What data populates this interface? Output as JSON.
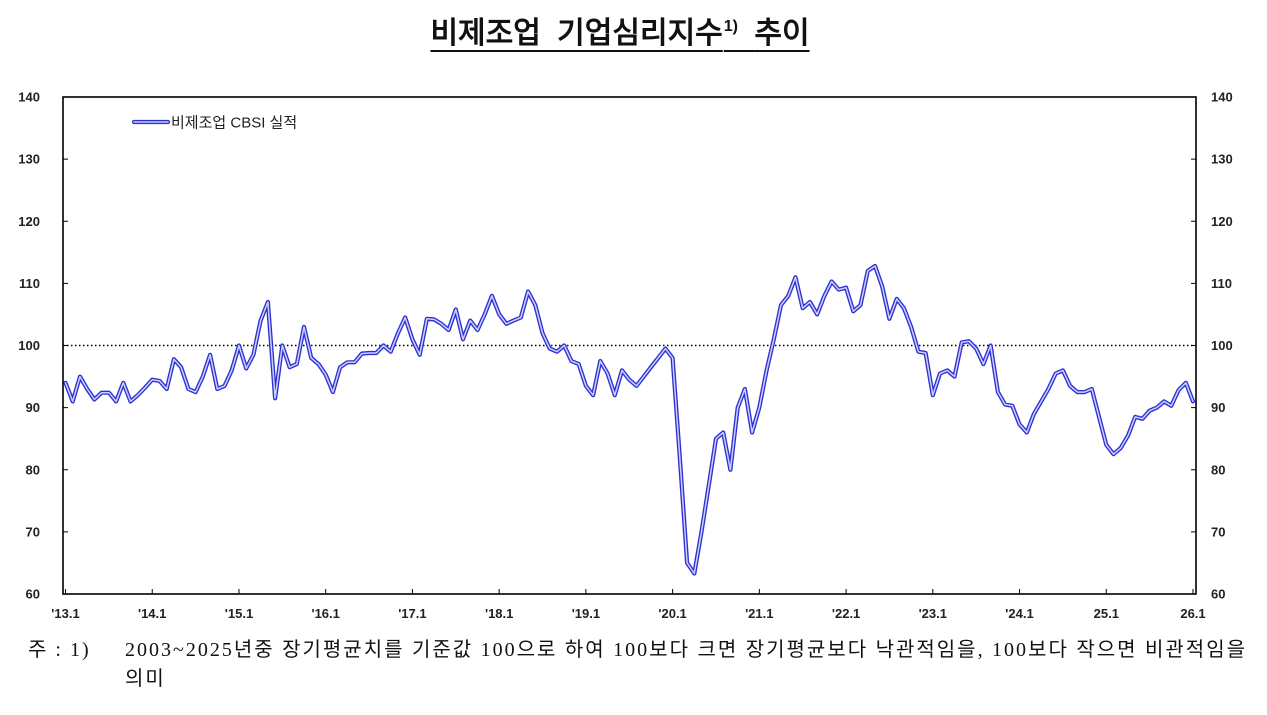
{
  "chart_data": {
    "type": "line",
    "title": "비제조업 기업심리지수",
    "title_note_mark": "1)",
    "title_suffix": "추이",
    "ylim": [
      60,
      140
    ],
    "y_ticks": [
      140,
      130,
      120,
      110,
      100,
      90,
      80,
      70,
      60
    ],
    "right_axis_mirrors_left": true,
    "x_ticks": [
      "'13.1",
      "'14.1",
      "'15.1",
      "'16.1",
      "'17.1",
      "'18.1",
      "'19.1",
      "'20.1",
      "'21.1",
      "'22.1",
      "'23.1",
      "'24.1",
      "25.1",
      "26.1"
    ],
    "x": [
      "2013-01",
      "2013-02",
      "2013-03",
      "2013-04",
      "2013-05",
      "2013-06",
      "2013-07",
      "2013-08",
      "2013-09",
      "2013-10",
      "2013-11",
      "2013-12",
      "2014-01",
      "2014-02",
      "2014-03",
      "2014-04",
      "2014-05",
      "2014-06",
      "2014-07",
      "2014-08",
      "2014-09",
      "2014-10",
      "2014-11",
      "2014-12",
      "2015-01",
      "2015-02",
      "2015-03",
      "2015-04",
      "2015-05",
      "2015-06",
      "2015-07",
      "2015-08",
      "2015-09",
      "2015-10",
      "2015-11",
      "2015-12",
      "2016-01",
      "2016-02",
      "2016-03",
      "2016-04",
      "2016-05",
      "2016-06",
      "2016-07",
      "2016-08",
      "2016-09",
      "2016-10",
      "2016-11",
      "2016-12",
      "2017-01",
      "2017-02",
      "2017-03",
      "2017-04",
      "2017-05",
      "2017-06",
      "2017-07",
      "2017-08",
      "2017-09",
      "2017-10",
      "2017-11",
      "2017-12",
      "2018-01",
      "2018-02",
      "2018-03",
      "2018-04",
      "2018-05",
      "2018-06",
      "2018-07",
      "2018-08",
      "2018-09",
      "2018-10",
      "2018-11",
      "2018-12",
      "2019-01",
      "2019-02",
      "2019-03",
      "2019-04",
      "2019-05",
      "2019-06",
      "2019-07",
      "2019-08",
      "2019-09",
      "2019-10",
      "2019-11",
      "2019-12",
      "2020-01",
      "2020-02",
      "2020-03",
      "2020-04",
      "2020-05",
      "2020-06",
      "2020-07",
      "2020-08",
      "2020-09",
      "2020-10",
      "2020-11",
      "2020-12",
      "2021-01",
      "2021-02",
      "2021-03",
      "2021-04",
      "2021-05",
      "2021-06",
      "2021-07",
      "2021-08",
      "2021-09",
      "2021-10",
      "2021-11",
      "2021-12",
      "2022-01",
      "2022-02",
      "2022-03",
      "2022-04",
      "2022-05",
      "2022-06",
      "2022-07",
      "2022-08",
      "2022-09",
      "2022-10",
      "2022-11",
      "2022-12",
      "2023-01",
      "2023-02",
      "2023-03",
      "2023-04",
      "2023-05",
      "2023-06",
      "2023-07",
      "2023-08",
      "2023-09",
      "2023-10",
      "2023-11",
      "2023-12",
      "2024-01",
      "2024-02",
      "2024-03",
      "2024-04",
      "2024-05",
      "2024-06",
      "2024-07",
      "2024-08",
      "2024-09",
      "2024-10",
      "2024-11",
      "2024-12",
      "2025-01",
      "2025-02",
      "2025-03",
      "2025-04",
      "2025-05",
      "2025-06",
      "2025-07",
      "2025-08",
      "2025-09",
      "2025-10",
      "2025-11",
      "2025-12",
      "2026-01"
    ],
    "series": [
      {
        "name": "비제조업 CBSI 실적",
        "color": "#3030d0",
        "values": [
          94,
          91,
          95,
          93,
          91.3,
          92.4,
          92.4,
          91,
          94,
          91,
          92,
          93.2,
          94.5,
          94.3,
          93,
          97.8,
          96.5,
          93,
          92.5,
          95,
          98.5,
          93,
          93.5,
          96,
          100,
          96.3,
          98.5,
          104,
          107,
          91.5,
          100,
          96.5,
          97,
          103,
          98,
          97,
          95.3,
          92.5,
          96.5,
          97.3,
          97.3,
          98.7,
          98.8,
          98.8,
          100,
          99,
          102,
          104.5,
          101,
          98.5,
          104.3,
          104.2,
          103.5,
          102.5,
          105.8,
          101,
          104,
          102.5,
          105,
          108,
          105,
          103.5,
          104,
          104.5,
          108.7,
          106.5,
          102,
          99.5,
          99,
          100,
          97.5,
          97,
          93.5,
          92,
          97.5,
          95.5,
          92,
          96,
          94.5,
          93.5,
          95,
          96.5,
          98,
          99.5,
          98,
          82,
          65,
          63.3,
          70,
          77.5,
          85,
          86,
          80,
          90,
          93,
          86,
          90,
          96,
          101,
          106.5,
          108,
          111,
          106,
          107,
          105,
          108,
          110.3,
          109,
          109.3,
          105.5,
          106.5,
          112,
          112.8,
          109.5,
          104.3,
          107.5,
          106,
          103,
          99,
          98.8,
          92,
          95.5,
          96,
          95,
          100.5,
          100.7,
          99.5,
          97,
          100,
          92.5,
          90.5,
          90.3,
          87.3,
          86,
          89,
          91,
          93,
          95.5,
          96,
          93.5,
          92.5,
          92.5,
          93,
          88.5,
          84,
          82.5,
          83.5,
          85.5,
          88.5,
          88.2,
          89.5,
          90,
          91,
          90.3,
          92.8,
          94,
          91
        ]
      }
    ],
    "reference_line": 100,
    "reference_line_style": "dotted",
    "legend_position": "top-left",
    "grid": false
  },
  "footnote": {
    "label": "주 : 1)",
    "text": "2003~2025년중 장기평균치를 기준값 100으로 하여 100보다 크면 장기평균보다 낙관적임을, 100보다 작으면 비관적임을 의미"
  }
}
